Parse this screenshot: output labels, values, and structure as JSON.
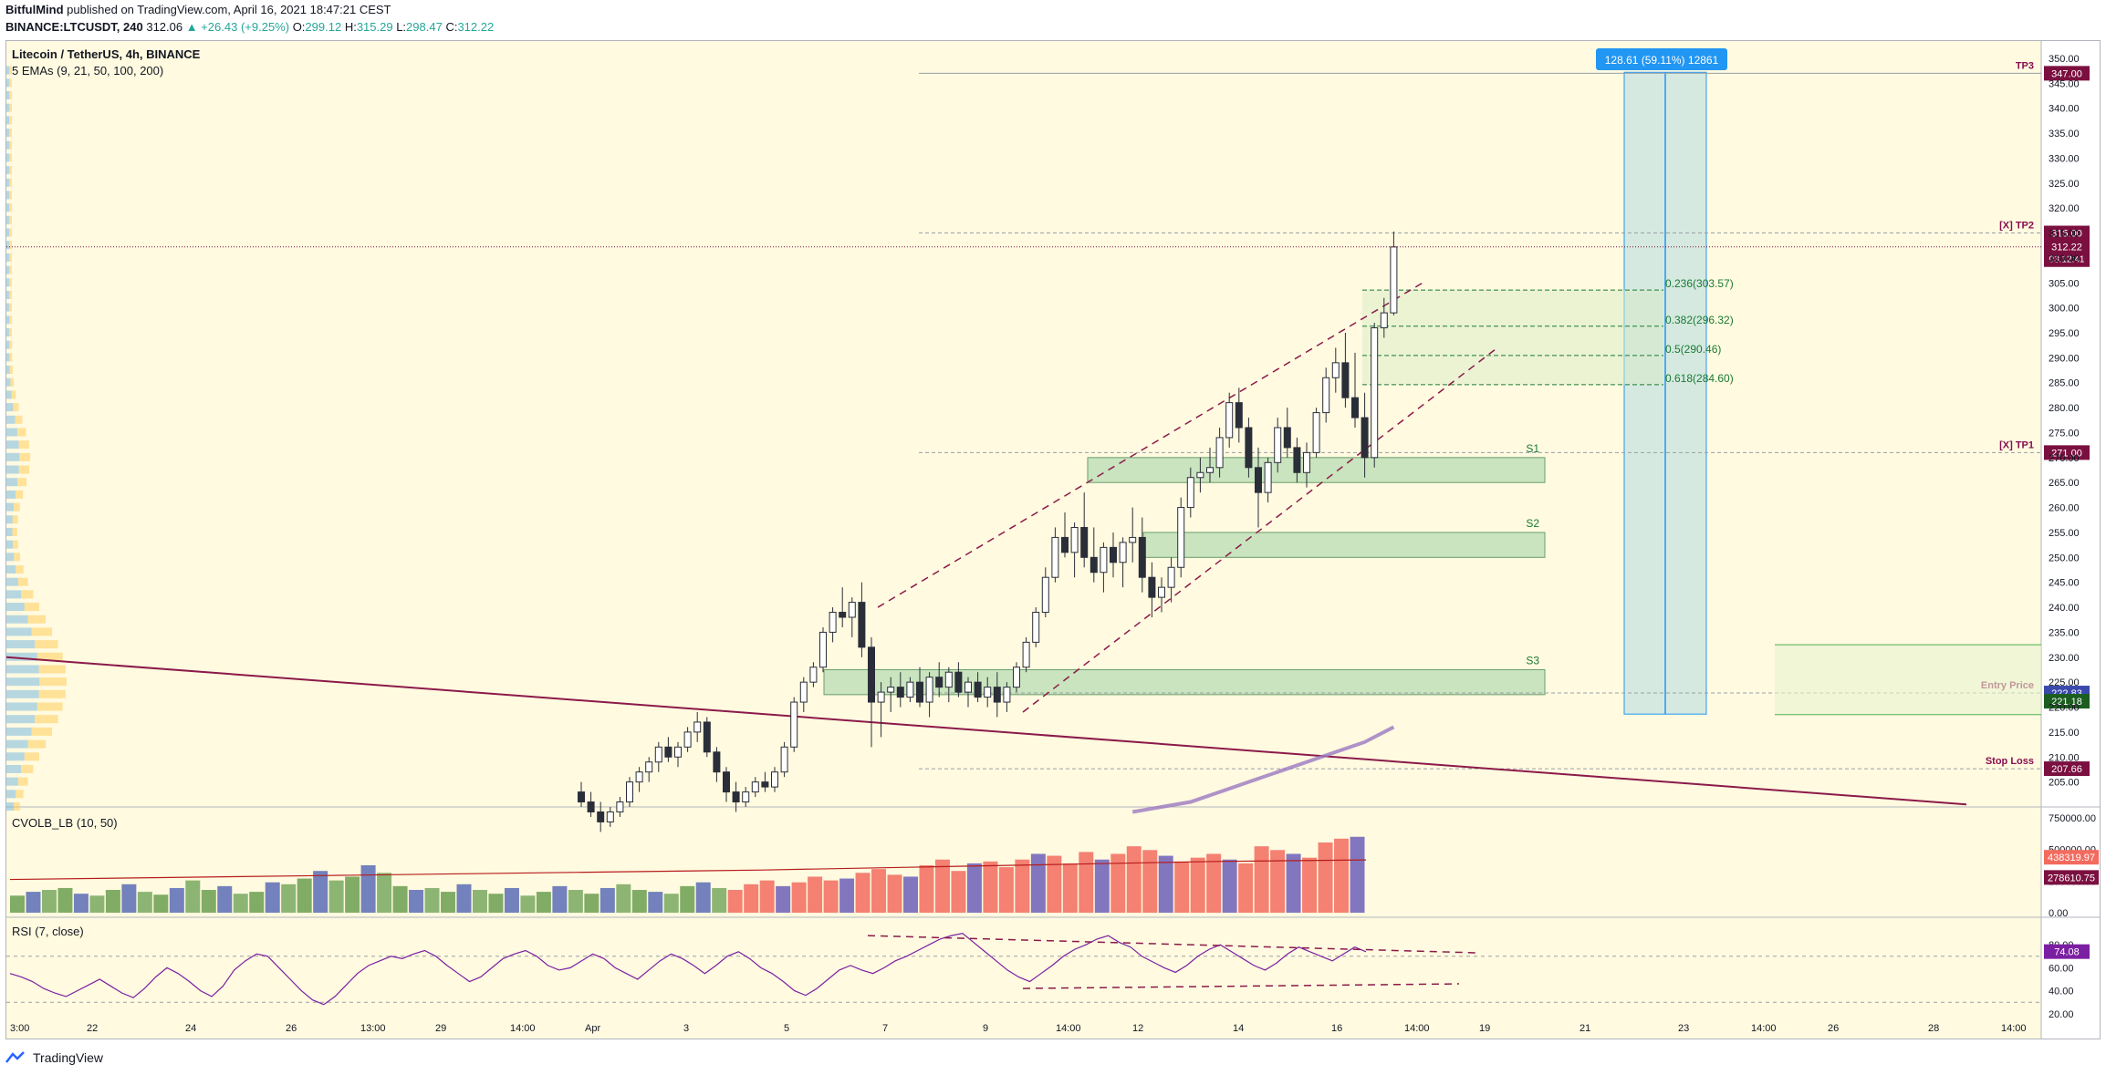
{
  "header": {
    "author": "BitfulMind",
    "published_text": "published on TradingView.com, April 16, 2021 18:47:21 CEST",
    "symbol": "BINANCE:LTCUSDT, 240",
    "last": "312.06",
    "change": "▲ +26.43 (+9.25%)",
    "open_label": "O:",
    "open": "299.12",
    "high_label": "H:",
    "high": "315.29",
    "low_label": "L:",
    "low": "298.47",
    "close_label": "C:",
    "close": "312.22"
  },
  "legend": {
    "title": "Litecoin / TetherUS, 4h, BINANCE",
    "emas": "5 EMAs (9, 21, 50, 100, 200)"
  },
  "footer": {
    "brand": "TradingView"
  },
  "colors": {
    "background": "#fffae0",
    "bull": "#ffffff",
    "bear": "#2a2e39",
    "zone": "#a5d6a7",
    "fib": "#1b7a32",
    "measure": "#2196f3",
    "tp_label": "#880e4f",
    "trend": "#8b1a4a",
    "ema": "#9b78c2"
  },
  "chart_data": [
    {
      "type": "candlestick",
      "title": "Litecoin / TetherUS, 4h, BINANCE",
      "ylim": [
        200,
        352
      ],
      "y_ticks": [
        205,
        210,
        215,
        220,
        225,
        230,
        235,
        240,
        245,
        250,
        255,
        260,
        265,
        270,
        275,
        280,
        285,
        290,
        295,
        300,
        305,
        310,
        315,
        320,
        325,
        330,
        335,
        340,
        345,
        350
      ],
      "x_ticks": [
        "3:00",
        "22",
        "24",
        "26",
        "13:00",
        "29",
        "14:00",
        "Apr",
        "3",
        "5",
        "7",
        "9",
        "14:00",
        "12",
        "14",
        "16",
        "14:00",
        "19",
        "21",
        "23",
        "14:00",
        "26",
        "28",
        "14:00"
      ],
      "candles": [
        [
          203,
          205,
          200,
          201
        ],
        [
          201,
          203,
          198,
          199
        ],
        [
          199,
          201,
          195,
          197
        ],
        [
          197,
          200,
          196,
          199
        ],
        [
          199,
          202,
          198,
          201
        ],
        [
          201,
          206,
          200,
          205
        ],
        [
          205,
          208,
          203,
          207
        ],
        [
          207,
          210,
          205,
          209
        ],
        [
          209,
          213,
          207,
          212
        ],
        [
          212,
          214,
          209,
          210
        ],
        [
          210,
          213,
          208,
          212
        ],
        [
          212,
          216,
          211,
          215
        ],
        [
          215,
          219,
          213,
          217
        ],
        [
          217,
          218,
          210,
          211
        ],
        [
          211,
          212,
          205,
          207
        ],
        [
          207,
          208,
          201,
          203
        ],
        [
          203,
          205,
          199,
          201
        ],
        [
          201,
          204,
          200,
          203
        ],
        [
          203,
          206,
          202,
          205
        ],
        [
          205,
          207,
          203,
          204
        ],
        [
          204,
          208,
          203,
          207
        ],
        [
          207,
          213,
          206,
          212
        ],
        [
          212,
          222,
          211,
          221
        ],
        [
          221,
          226,
          219,
          225
        ],
        [
          225,
          229,
          224,
          228
        ],
        [
          228,
          236,
          227,
          235
        ],
        [
          235,
          240,
          233,
          239
        ],
        [
          239,
          244,
          236,
          238
        ],
        [
          238,
          242,
          234,
          241
        ],
        [
          241,
          245,
          230,
          232
        ],
        [
          232,
          234,
          212,
          221
        ],
        [
          221,
          225,
          214,
          223
        ],
        [
          223,
          226,
          219,
          224
        ],
        [
          224,
          227,
          220,
          222
        ],
        [
          222,
          226,
          221,
          225
        ],
        [
          225,
          228,
          220,
          221
        ],
        [
          221,
          227,
          218,
          226
        ],
        [
          226,
          229,
          222,
          224
        ],
        [
          224,
          228,
          221,
          227
        ],
        [
          227,
          229,
          222,
          223
        ],
        [
          223,
          226,
          220,
          225
        ],
        [
          225,
          227,
          221,
          222
        ],
        [
          222,
          226,
          220,
          224
        ],
        [
          224,
          227,
          218,
          221
        ],
        [
          221,
          225,
          219,
          224
        ],
        [
          224,
          229,
          223,
          228
        ],
        [
          228,
          234,
          227,
          233
        ],
        [
          233,
          240,
          232,
          239
        ],
        [
          239,
          248,
          238,
          246
        ],
        [
          246,
          256,
          245,
          254
        ],
        [
          254,
          259,
          250,
          251
        ],
        [
          251,
          257,
          246,
          256
        ],
        [
          256,
          263,
          248,
          250
        ],
        [
          250,
          256,
          245,
          247
        ],
        [
          247,
          253,
          243,
          252
        ],
        [
          252,
          255,
          246,
          249
        ],
        [
          249,
          254,
          244,
          253
        ],
        [
          253,
          260,
          249,
          254
        ],
        [
          254,
          258,
          243,
          246
        ],
        [
          246,
          249,
          238,
          242
        ],
        [
          242,
          246,
          239,
          244
        ],
        [
          244,
          250,
          241,
          248
        ],
        [
          248,
          262,
          246,
          260
        ],
        [
          260,
          268,
          258,
          266
        ],
        [
          266,
          270,
          263,
          267
        ],
        [
          267,
          272,
          265,
          268
        ],
        [
          268,
          276,
          266,
          274
        ],
        [
          274,
          283,
          272,
          281
        ],
        [
          281,
          284,
          273,
          276
        ],
        [
          276,
          278,
          266,
          268
        ],
        [
          268,
          272,
          256,
          263
        ],
        [
          263,
          270,
          261,
          269
        ],
        [
          269,
          278,
          267,
          276
        ],
        [
          276,
          280,
          270,
          272
        ],
        [
          272,
          274,
          265,
          267
        ],
        [
          267,
          273,
          264,
          271
        ],
        [
          271,
          280,
          270,
          279
        ],
        [
          279,
          288,
          277,
          286
        ],
        [
          286,
          292,
          283,
          289
        ],
        [
          289,
          295,
          280,
          282
        ],
        [
          282,
          291,
          276,
          278
        ],
        [
          278,
          283,
          266,
          270
        ],
        [
          270,
          297,
          268,
          296
        ],
        [
          296,
          302,
          294,
          299
        ],
        [
          299,
          315.3,
          298.5,
          312.2
        ]
      ],
      "ema_200": [
        [
          57,
          199
        ],
        [
          60,
          200
        ],
        [
          63,
          201
        ],
        [
          66,
          203
        ],
        [
          69,
          205
        ],
        [
          72,
          207
        ],
        [
          75,
          209
        ],
        [
          78,
          211
        ],
        [
          81,
          213
        ],
        [
          84,
          216
        ]
      ],
      "zones": [
        {
          "label": "S1",
          "from": 265,
          "to": 270
        },
        {
          "label": "S2",
          "from": 250,
          "to": 255
        },
        {
          "label": "S3",
          "from": 222.5,
          "to": 227.5
        }
      ],
      "fib_levels": [
        {
          "label": "0.236(303.57)",
          "value": 303.57
        },
        {
          "label": "0.382(296.32)",
          "value": 296.32
        },
        {
          "label": "0.5(290.46)",
          "value": 290.46
        },
        {
          "label": "0.618(284.60)",
          "value": 284.6
        }
      ],
      "targets": [
        {
          "label": "TP3",
          "value": 347.0,
          "tag": "347.00"
        },
        {
          "label": "[X] TP2",
          "value": 315.0,
          "tag": "315.00"
        },
        {
          "label": "[X] TP1",
          "value": 271.0,
          "tag": "271.00"
        },
        {
          "label": "Entry Price",
          "value": 222.83,
          "tag": "222.83"
        },
        {
          "label": "Stop Loss",
          "value": 207.66,
          "tag": "207.66"
        }
      ],
      "price_tags": [
        {
          "value": 312.22,
          "text": "312.22",
          "sub": "03:12:41"
        },
        {
          "value": 221.18,
          "text": "221.18"
        }
      ],
      "measure": {
        "text": "128.61 (59.11%) 12861",
        "from": 218.6,
        "to": 347.2
      }
    },
    {
      "type": "bar",
      "title": "CVOLB_LB (10, 50)",
      "ylim": [
        0,
        800000
      ],
      "y_ticks": [
        {
          "v": 0,
          "t": "0.00"
        },
        {
          "v": 250000,
          "t": "250000.00"
        },
        {
          "v": 500000,
          "t": "500000.00"
        },
        {
          "v": 750000,
          "t": "750000.00"
        }
      ],
      "tags": [
        {
          "v": 438319.97,
          "t": "438319.97"
        },
        {
          "v": 278610.75,
          "t": "278610.75"
        }
      ],
      "values": [
        90,
        110,
        120,
        130,
        100,
        90,
        120,
        150,
        110,
        95,
        130,
        170,
        120,
        140,
        100,
        110,
        160,
        150,
        180,
        220,
        170,
        190,
        250,
        210,
        140,
        120,
        130,
        110,
        150,
        120,
        100,
        130,
        90,
        110,
        140,
        120,
        100,
        130,
        150,
        120,
        110,
        100,
        140,
        160,
        130,
        120,
        150,
        170,
        140,
        160,
        190,
        170,
        180,
        210,
        230,
        200,
        190,
        250,
        280,
        220,
        260,
        270,
        240,
        280,
        310,
        300,
        260,
        320,
        280,
        310,
        350,
        330,
        300,
        270,
        290,
        310,
        280,
        260,
        350,
        330,
        310,
        290,
        370,
        390,
        400
      ],
      "ma": [
        175,
        185,
        195,
        205,
        215,
        225,
        240,
        255,
        270,
        278
      ]
    },
    {
      "type": "line",
      "title": "RSI (7, close)",
      "ylim": [
        0,
        100
      ],
      "y_ticks": [
        20,
        40,
        60,
        80
      ],
      "tags": [
        {
          "v": 74.08,
          "t": "74.08"
        }
      ],
      "values": [
        55,
        52,
        48,
        42,
        38,
        35,
        40,
        45,
        50,
        44,
        38,
        34,
        42,
        52,
        60,
        55,
        48,
        40,
        35,
        44,
        58,
        66,
        72,
        70,
        60,
        50,
        40,
        32,
        28,
        35,
        45,
        55,
        62,
        66,
        70,
        68,
        72,
        75,
        70,
        62,
        55,
        48,
        52,
        60,
        68,
        72,
        75,
        70,
        62,
        58,
        60,
        66,
        72,
        68,
        60,
        55,
        50,
        58,
        66,
        72,
        68,
        62,
        55,
        62,
        70,
        74,
        68,
        60,
        55,
        48,
        40,
        36,
        42,
        50,
        58,
        62,
        58,
        55,
        60,
        66,
        70,
        75,
        80,
        85,
        88,
        90,
        82,
        74,
        66,
        58,
        52,
        48,
        55,
        62,
        70,
        76,
        80,
        85,
        88,
        82,
        78,
        70,
        65,
        60,
        56,
        62,
        70,
        76,
        80,
        74,
        68,
        62,
        58,
        64,
        72,
        78,
        74,
        70,
        66,
        72,
        78,
        74
      ]
    }
  ]
}
